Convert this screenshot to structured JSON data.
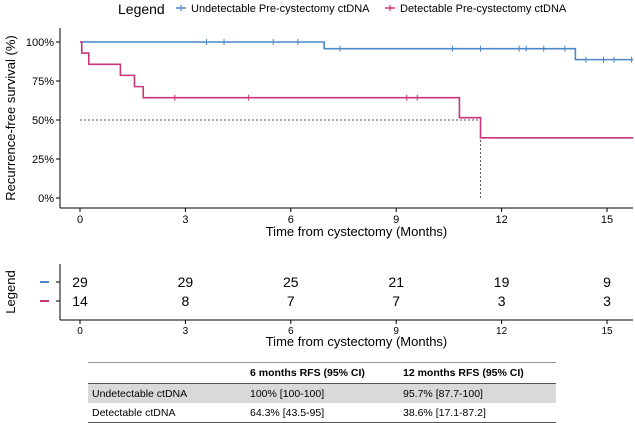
{
  "chart_data": {
    "type": "line",
    "subtype": "kaplan-meier",
    "legend": {
      "title": "Legend",
      "position": "top",
      "entries": [
        "Undetectable Pre-cystectomy ctDNA",
        "Detectable Pre-cystectomy ctDNA"
      ]
    },
    "xlabel": "Time from cystectomy (Months)",
    "ylabel": "Recurrence-free survival (%)",
    "xlim": [
      -0.5,
      15.8
    ],
    "ylim": [
      0,
      1
    ],
    "xticks": [
      0,
      3,
      6,
      9,
      12,
      15
    ],
    "yticks": [
      0,
      0.25,
      0.5,
      0.75,
      1
    ],
    "ytick_labels": [
      "0%",
      "25%",
      "50%",
      "75%",
      "100%"
    ],
    "grid": false,
    "median_line": {
      "y": 0.5,
      "x": 11.4
    },
    "series": [
      {
        "name": "Undetectable Pre-cystectomy ctDNA",
        "color": "#4a86c8",
        "steps": [
          [
            0,
            1.0
          ],
          [
            6.95,
            0.957
          ],
          [
            14.1,
            0.887
          ],
          [
            15.8,
            0.887
          ]
        ],
        "censor_times": [
          3.6,
          4.1,
          5.5,
          6.2,
          7.4,
          10.6,
          11.4,
          12.5,
          12.7,
          13.2,
          13.8,
          14.4,
          14.9,
          15.2,
          15.7
        ]
      },
      {
        "name": "Detectable Pre-cystectomy ctDNA",
        "color": "#c8347b",
        "steps": [
          [
            0,
            1.0
          ],
          [
            0.05,
            0.929
          ],
          [
            0.25,
            0.857
          ],
          [
            1.15,
            0.786
          ],
          [
            1.55,
            0.714
          ],
          [
            1.8,
            0.643
          ],
          [
            10.8,
            0.515
          ],
          [
            11.4,
            0.386
          ],
          [
            15.8,
            0.386
          ]
        ],
        "censor_times": [
          2.7,
          4.8,
          9.3,
          9.6
        ]
      }
    ],
    "risk_table": {
      "title": "Legend",
      "xlabel": "Time from cystectomy (Months)",
      "times": [
        0,
        3,
        6,
        9,
        12,
        15
      ],
      "rows": [
        {
          "color": "#4a86c8",
          "counts": [
            "29",
            "29",
            "25",
            "21",
            "19",
            "9"
          ]
        },
        {
          "color": "#c8347b",
          "counts": [
            "14",
            "8",
            "7",
            "7",
            "3",
            "3"
          ]
        }
      ]
    }
  },
  "table": {
    "headers": [
      "",
      "6 months RFS (95% CI)",
      "12 months RFS (95% CI)"
    ],
    "rows": [
      [
        "Undetectable ctDNA",
        "100% [100-100]",
        "95.7% [87.7-100]"
      ],
      [
        "Detectable ctDNA",
        "64.3% [43.5-95]",
        "38.6% [17.1-87.2]"
      ]
    ]
  }
}
